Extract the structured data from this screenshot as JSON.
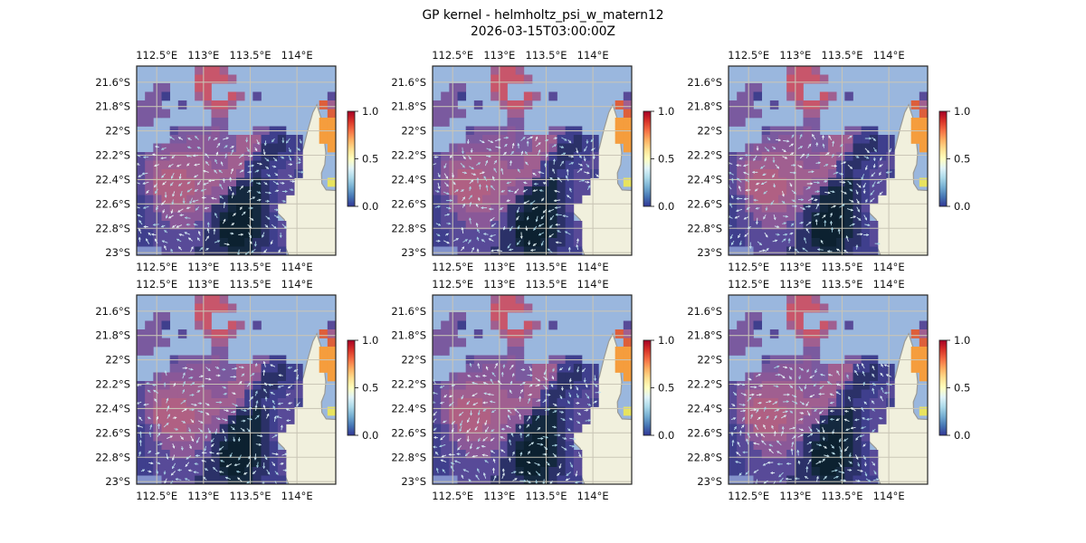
{
  "figure": {
    "title_line1": "GP kernel - helmholtz_psi_w_matern12",
    "title_line2": "2026-03-15T03:00:00Z"
  },
  "chart_data": {
    "type": "heatmap",
    "title": "GP kernel - helmholtz_psi_w_matern12",
    "subtitle": "2026-03-15T03:00:00Z",
    "grid_rows": 2,
    "grid_cols": 3,
    "panels": [
      {
        "row": 0,
        "col": 0,
        "arrow_seed": 11
      },
      {
        "row": 0,
        "col": 1,
        "arrow_seed": 23
      },
      {
        "row": 0,
        "col": 2,
        "arrow_seed": 37
      },
      {
        "row": 1,
        "col": 0,
        "arrow_seed": 41
      },
      {
        "row": 1,
        "col": 1,
        "arrow_seed": 53
      },
      {
        "row": 1,
        "col": 2,
        "arrow_seed": 67
      }
    ],
    "x_ticks": {
      "values": [
        112.5,
        113,
        113.5,
        114
      ],
      "labels": [
        "112.5°E",
        "113°E",
        "113.5°E",
        "114°E"
      ]
    },
    "y_ticks": {
      "values": [
        21.6,
        21.8,
        22,
        22.2,
        22.4,
        22.6,
        22.8,
        23
      ],
      "labels": [
        "21.6°S",
        "21.8°S",
        "22°S",
        "22.2°S",
        "22.4°S",
        "22.6°S",
        "22.8°S",
        "23°S"
      ]
    },
    "lon_range": [
      112.285,
      114.415
    ],
    "lat_range_s": [
      21.468,
      23.021
    ],
    "colorbar": {
      "colormap": "RdYlBu_r",
      "tick_labels": [
        "1.0",
        "0.5",
        "0.0"
      ],
      "tick_values": [
        1.0,
        0.5,
        0.0
      ],
      "stops_top_to_bottom": [
        "#a50026",
        "#d73027",
        "#f46d43",
        "#fdae61",
        "#fee090",
        "#ffffbf",
        "#e0f3f8",
        "#abd9e9",
        "#74add1",
        "#4575b4",
        "#313695"
      ]
    },
    "colors": {
      "ocean": "#9ab7de",
      "land": "#f1f0dd",
      "coast_outline": "#9a9a96",
      "gridline": "#c9c5b6",
      "frame": "#262626",
      "tick_text": "#111111",
      "arrow_palette": [
        "#d4ecf5",
        "#bfe2ef",
        "#a9d6e6",
        "#e8f6f8"
      ]
    },
    "palette": {
      "R": "#c8566b",
      "m": "#a05f90",
      "M": "#b06083",
      "v": "#8a5898",
      "p": "#7a5a9f",
      "P": "#584a98",
      "b": "#3f3f8d",
      "B": "#2b3168",
      "N": "#14293f",
      "n": "#0c2130",
      "O": "#f59d3d",
      "o": "#dd5f3b",
      "Y": "#e8e35f",
      "L": "#8292cb"
    },
    "field_grid": [
      ".......mRRm.............",
      ".......RRRRm............",
      "..pp...RR...............",
      ".ppb...mR..Rm.P........P",
      "ppp..P..mRRm..........om",
      "pppp.....mm............o",
      "pp.......pp...........OO",
      "....Pppppvp...ppbb....OO",
      "....ppvvvvppmmmbbBbb..OO",
      "..pvvvvvvvppmmvBBBbb...O",
      "PpvvmmmmvvvmmvbBBbbP....",
      "PvmmmmmmmvvmmbBBbbPP....",
      "PvmMMMmmmmmmvbBbbPPb....",
      "PvMMMMMmmmvvBBNBbPP....Y",
      "PvMMMMMmmvvBNNNBbPP.....",
      "bPvMMMmmvvBNNNNBbP......",
      "bPvvmmmvvBBNnnNBP.......",
      "bPPvvvvvPBNnnnNBb.......",
      "bPPPvvvPPBnnnnNBbP......",
      "bbPPPPPPBBnnnnNBbP......",
      "bbPPPPPPBBNnnNBBbP......",
      "LLLPPPPBBBBNNNBbbb......"
    ],
    "coastline": [
      [
        0.905,
        0.205
      ],
      [
        0.925,
        0.27
      ],
      [
        0.94,
        0.36
      ],
      [
        0.95,
        0.46
      ],
      [
        0.945,
        0.52
      ],
      [
        0.928,
        0.565
      ],
      [
        0.93,
        0.62
      ],
      [
        0.952,
        0.655
      ],
      [
        1.03,
        0.66
      ],
      [
        1.03,
        1.02
      ],
      [
        0.772,
        1.02
      ],
      [
        0.756,
        0.98
      ],
      [
        0.732,
        0.922
      ],
      [
        0.75,
        0.865
      ],
      [
        0.742,
        0.812
      ],
      [
        0.703,
        0.772
      ],
      [
        0.668,
        0.725
      ],
      [
        0.692,
        0.705
      ],
      [
        0.742,
        0.648
      ],
      [
        0.783,
        0.565
      ],
      [
        0.806,
        0.515
      ],
      [
        0.838,
        0.43
      ],
      [
        0.862,
        0.33
      ],
      [
        0.885,
        0.245
      ]
    ]
  }
}
